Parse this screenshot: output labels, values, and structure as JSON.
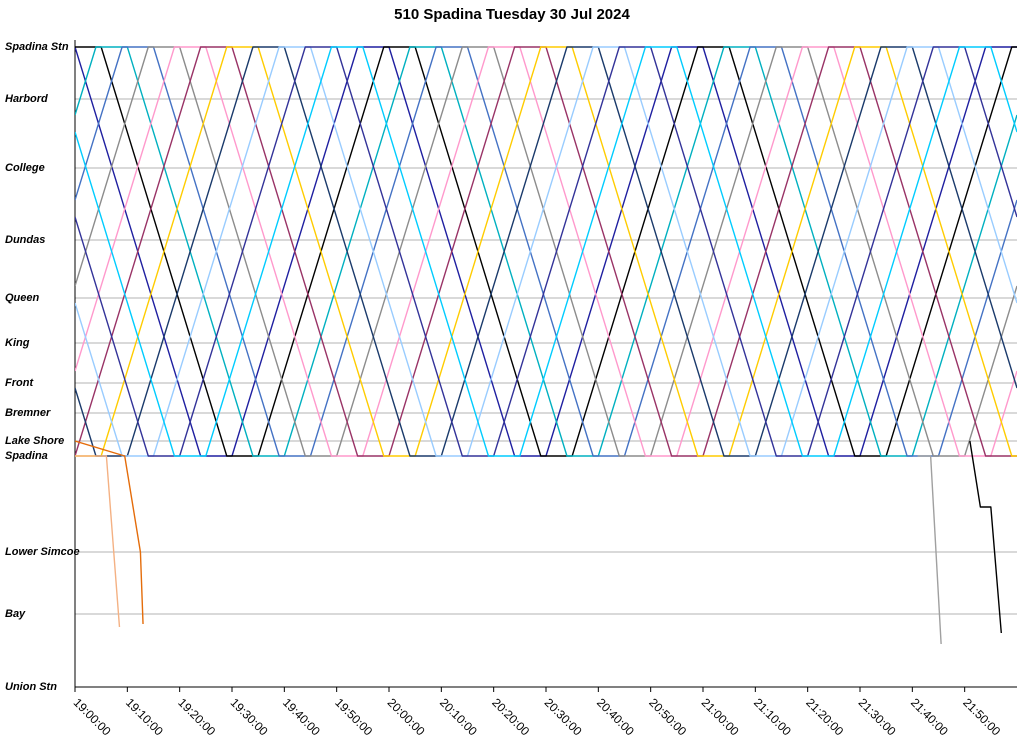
{
  "chart_data": {
    "type": "line",
    "title": "510 Spadina Tuesday 30 Jul 2024",
    "xlim": [
      "19:00:00",
      "22:00:00"
    ],
    "xticks": [
      "19:00:00",
      "19:10:00",
      "19:20:00",
      "19:30:00",
      "19:40:00",
      "19:50:00",
      "20:00:00",
      "20:10:00",
      "20:20:00",
      "20:30:00",
      "20:40:00",
      "20:50:00",
      "21:00:00",
      "21:10:00",
      "21:20:00",
      "21:30:00",
      "21:40:00",
      "21:50:00"
    ],
    "ylim": [
      0,
      6.47
    ],
    "yticks": [
      {
        "value": 0,
        "label": "Union Stn"
      },
      {
        "value": 0.73,
        "label": "Bay"
      },
      {
        "value": 1.35,
        "label": "Lower Simcoe"
      },
      {
        "value": 2.31,
        "label": "Spadina"
      },
      {
        "value": 2.46,
        "label": "Lake Shore"
      },
      {
        "value": 2.74,
        "label": "Bremner"
      },
      {
        "value": 3.04,
        "label": "Front"
      },
      {
        "value": 3.44,
        "label": "King"
      },
      {
        "value": 3.89,
        "label": "Queen"
      },
      {
        "value": 4.47,
        "label": "Dundas"
      },
      {
        "value": 5.19,
        "label": "College"
      },
      {
        "value": 5.88,
        "label": "Harbord"
      },
      {
        "value": 6.4,
        "label": "Spadina Stn"
      }
    ],
    "grid": true,
    "series": [
      {
        "color": "#1f1fa0",
        "x": [
          "19:00:00",
          "19:24:00",
          "19:30:00",
          "19:54:00",
          "20:00:00",
          "20:24:00",
          "20:30:00",
          "20:54:00",
          "21:00:00",
          "21:24:00",
          "21:30:00",
          "21:54:00",
          "22:00:00"
        ],
        "values": [
          6.4,
          2.31,
          2.31,
          6.4,
          6.4,
          2.31,
          2.31,
          6.4,
          6.4,
          2.31,
          2.31,
          6.4,
          6.4
        ]
      },
      {
        "color": "#000000",
        "x": [
          "19:00:00",
          "19:05:00",
          "19:29:00",
          "19:35:00",
          "19:59:00",
          "20:05:00",
          "20:29:00",
          "20:35:00",
          "20:59:00",
          "21:05:00",
          "21:29:00",
          "21:35:00",
          "21:59:00",
          "22:00:00"
        ],
        "values": [
          6.4,
          6.4,
          2.31,
          2.31,
          6.4,
          6.4,
          2.31,
          2.31,
          6.4,
          6.4,
          2.31,
          2.31,
          6.4,
          6.4
        ]
      },
      {
        "color": "#00b0c0",
        "x": [
          "19:00:00",
          "19:04:00",
          "19:10:00",
          "19:34:00",
          "19:40:00",
          "20:04:00",
          "20:10:00",
          "20:34:00",
          "20:40:00",
          "21:04:00",
          "21:10:00",
          "21:34:00",
          "21:40:00",
          "22:00:00"
        ],
        "values": [
          5.72,
          6.4,
          6.4,
          2.31,
          2.31,
          6.4,
          6.4,
          2.31,
          2.31,
          6.4,
          6.4,
          2.31,
          2.31,
          5.72
        ]
      },
      {
        "color": "#4472c4",
        "x": [
          "19:00:00",
          "19:09:00",
          "19:15:00",
          "19:39:00",
          "19:45:00",
          "20:09:00",
          "20:15:00",
          "20:39:00",
          "20:45:00",
          "21:09:00",
          "21:15:00",
          "21:39:00",
          "21:45:00",
          "22:00:00"
        ],
        "values": [
          4.87,
          6.4,
          6.4,
          2.31,
          2.31,
          6.4,
          6.4,
          2.31,
          2.31,
          6.4,
          6.4,
          2.31,
          2.31,
          4.87
        ]
      },
      {
        "color": "#8c8c8c",
        "x": [
          "19:00:00",
          "19:14:00",
          "19:20:00",
          "19:44:00",
          "19:50:00",
          "20:14:00",
          "20:20:00",
          "20:44:00",
          "20:50:00",
          "21:14:00",
          "21:20:00",
          "21:44:00",
          "21:50:00",
          "22:00:00"
        ],
        "values": [
          4.01,
          6.4,
          6.4,
          2.31,
          2.31,
          6.4,
          6.4,
          2.31,
          2.31,
          6.4,
          6.4,
          2.31,
          2.31,
          4.01
        ]
      },
      {
        "color": "#ff99cc",
        "x": [
          "19:00:00",
          "19:19:00",
          "19:25:00",
          "19:49:00",
          "19:55:00",
          "20:19:00",
          "20:25:00",
          "20:49:00",
          "20:55:00",
          "21:19:00",
          "21:25:00",
          "21:49:00",
          "21:55:00",
          "22:00:00"
        ],
        "values": [
          3.16,
          6.4,
          6.4,
          2.31,
          2.31,
          6.4,
          6.4,
          2.31,
          2.31,
          6.4,
          6.4,
          2.31,
          2.31,
          3.16
        ]
      },
      {
        "color": "#993366",
        "x": [
          "19:00:00",
          "19:24:00",
          "19:30:00",
          "19:54:00",
          "20:00:00",
          "20:24:00",
          "20:30:00",
          "20:54:00",
          "21:00:00",
          "21:24:00",
          "21:30:00",
          "21:54:00",
          "22:00:00"
        ],
        "values": [
          2.31,
          6.4,
          6.4,
          2.31,
          2.31,
          6.4,
          6.4,
          2.31,
          2.31,
          6.4,
          6.4,
          2.31,
          2.31
        ]
      },
      {
        "color": "#ffcc00",
        "x": [
          "19:00:00",
          "19:05:00",
          "19:29:00",
          "19:35:00",
          "19:59:00",
          "20:05:00",
          "20:29:00",
          "20:35:00",
          "20:59:00",
          "21:05:00",
          "21:29:00",
          "21:35:00",
          "21:59:00",
          "22:00:00"
        ],
        "values": [
          2.31,
          2.31,
          6.4,
          6.4,
          2.31,
          2.31,
          6.4,
          6.4,
          2.31,
          2.31,
          6.4,
          6.4,
          2.31,
          2.31
        ]
      },
      {
        "color": "#1a3a6b",
        "x": [
          "19:00:00",
          "19:04:00",
          "19:10:00",
          "19:34:00",
          "19:40:00",
          "20:04:00",
          "20:10:00",
          "20:34:00",
          "20:40:00",
          "21:04:00",
          "21:10:00",
          "21:34:00",
          "21:40:00",
          "22:00:00"
        ],
        "values": [
          2.99,
          2.31,
          2.31,
          6.4,
          6.4,
          2.31,
          2.31,
          6.4,
          6.4,
          2.31,
          2.31,
          6.4,
          6.4,
          2.99
        ]
      },
      {
        "color": "#99ccff",
        "x": [
          "19:00:00",
          "19:09:00",
          "19:15:00",
          "19:39:00",
          "19:45:00",
          "20:09:00",
          "20:15:00",
          "20:39:00",
          "20:45:00",
          "21:09:00",
          "21:15:00",
          "21:39:00",
          "21:45:00",
          "22:00:00"
        ],
        "values": [
          3.84,
          2.31,
          2.31,
          6.4,
          6.4,
          2.31,
          2.31,
          6.4,
          6.4,
          2.31,
          2.31,
          6.4,
          6.4,
          3.84
        ]
      },
      {
        "color": "#333399",
        "x": [
          "19:00:00",
          "19:14:00",
          "19:20:00",
          "19:44:00",
          "19:50:00",
          "20:14:00",
          "20:20:00",
          "20:44:00",
          "20:50:00",
          "21:14:00",
          "21:20:00",
          "21:44:00",
          "21:50:00",
          "22:00:00"
        ],
        "values": [
          4.7,
          2.31,
          2.31,
          6.4,
          6.4,
          2.31,
          2.31,
          6.4,
          6.4,
          2.31,
          2.31,
          6.4,
          6.4,
          4.7
        ]
      },
      {
        "color": "#00ccff",
        "x": [
          "19:00:00",
          "19:19:00",
          "19:25:00",
          "19:49:00",
          "19:55:00",
          "20:19:00",
          "20:25:00",
          "20:49:00",
          "20:55:00",
          "21:19:00",
          "21:25:00",
          "21:49:00",
          "21:55:00",
          "22:00:00"
        ],
        "values": [
          5.55,
          2.31,
          2.31,
          6.4,
          6.4,
          2.31,
          2.31,
          6.4,
          6.4,
          2.31,
          2.31,
          6.4,
          6.4,
          5.55
        ]
      },
      {
        "color": "#f4b183",
        "x": [
          "19:00:00",
          "19:06:00",
          "19:08:30"
        ],
        "values": [
          2.31,
          2.31,
          0.6
        ]
      },
      {
        "color": "#e46c0a",
        "x": [
          "19:00:00",
          "19:09:30",
          "19:12:30",
          "19:13:00"
        ],
        "values": [
          2.46,
          2.31,
          1.35,
          0.63
        ]
      },
      {
        "color": "#a0a0a0",
        "x": [
          "21:41:00",
          "21:43:30",
          "21:45:30"
        ],
        "values": [
          2.31,
          2.31,
          0.43
        ]
      },
      {
        "color": "#000000",
        "x": [
          "21:51:00",
          "21:53:00",
          "21:55:00",
          "21:57:00"
        ],
        "values": [
          2.46,
          1.8,
          1.8,
          0.54
        ]
      }
    ]
  }
}
